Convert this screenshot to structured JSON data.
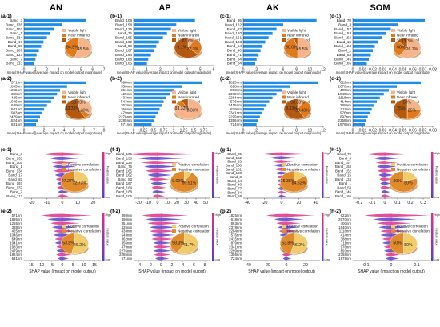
{
  "column_headers": [
    "AN",
    "AP",
    "AK",
    "SOM"
  ],
  "legend_labels": {
    "bands": [
      "Visible light",
      "Near infrared",
      "Short infrared"
    ],
    "correlation": [
      "Positive correlation",
      "Negative correlation"
    ]
  },
  "colorbar": {
    "high": "High",
    "low": "Low",
    "title": "Feature value"
  },
  "colors": {
    "bar": "#1f8ee8",
    "visible": "#f5b48a",
    "near_infrared": "#e07a1c",
    "short_infrared": "#b35a10",
    "positive": "#f2cc6b",
    "negative": "#e08a2a",
    "violin_hi": "#e0308a",
    "violin_lo": "#5a3ec8"
  },
  "chart_data": [
    {
      "id": "a-1",
      "type": "bar",
      "panel": "(a-1)",
      "categories": [
        "Band_3",
        "Band_135",
        "Band_103",
        "Band_1",
        "Band_134",
        "Band_17",
        "Band_83",
        "Band_167",
        "Band_137",
        "Band_7",
        "Band_113"
      ],
      "values": [
        5.4,
        3.3,
        2.6,
        2.3,
        2.0,
        1.7,
        1.5,
        1.3,
        1.1,
        1.0,
        0.9
      ],
      "xlim": [
        0,
        7
      ],
      "ticks": [
        0,
        1,
        2,
        3,
        4,
        5,
        6,
        7
      ],
      "pie": [
        {
          "label": "Visible light",
          "value": 54.5
        },
        {
          "label": "Near infrared",
          "value": 45.5
        }
      ],
      "pie_text": [
        "54.5%",
        "45.5%"
      ],
      "xlabel": "mean|SHAP value|(average impact on model output magnitude)"
    },
    {
      "id": "a-2",
      "type": "bar",
      "panel": "(a-2)",
      "categories": [
        "571nm",
        "1895nm",
        "1255nm",
        "388nm",
        "425nm",
        "1046nm",
        "649nm",
        "1941nm",
        "1983nm",
        "2479nm",
        "1824nm",
        "631nm"
      ],
      "values": [
        6.2,
        4.3,
        3.6,
        3.3,
        3.0,
        2.7,
        2.3,
        2.0,
        1.8,
        1.6,
        1.4,
        1.2
      ],
      "xlim": [
        0,
        8
      ],
      "ticks": [
        0,
        1,
        2,
        3,
        4,
        5,
        6,
        7,
        8
      ],
      "pie": [
        {
          "label": "Visible light",
          "value": 33.33
        },
        {
          "label": "Near infrared",
          "value": 8.33
        },
        {
          "label": "Short infrared",
          "value": 58.33
        }
      ],
      "pie_text": [
        "33.33%",
        "8.33%",
        "58.33%"
      ],
      "xlabel": "mean|SHAP value|(average impact on model output magnitude)"
    },
    {
      "id": "b-1",
      "type": "bar",
      "panel": "(b-1)",
      "categories": [
        "Band_106",
        "Band_158",
        "Band_125",
        "Band_76",
        "Band_165",
        "Band_162",
        "Band_83",
        "Band_167",
        "Band_164",
        "Band_168",
        "Band_105"
      ],
      "values": [
        4.6,
        3.2,
        2.8,
        2.5,
        2.2,
        1.9,
        1.7,
        1.5,
        1.3,
        1.1,
        1.0
      ],
      "xlim": [
        0,
        6
      ],
      "ticks": [
        0,
        1,
        2,
        3,
        4,
        5,
        6
      ],
      "pie": [
        {
          "label": "Visible light",
          "value": 9.1
        },
        {
          "label": "Near infrared",
          "value": 27.3
        },
        {
          "label": "Short infrared",
          "value": 63.6
        }
      ],
      "pie_text": [
        "9.1%",
        "27.3%",
        "63.6%"
      ],
      "xlabel": "mean|SHAP value|(average impact on model output magnitude)"
    },
    {
      "id": "b-2",
      "type": "bar",
      "panel": "(b-2)",
      "categories": [
        "398nm",
        "350nm",
        "351nm",
        "425nm",
        "433nm",
        "543nm",
        "362nm",
        "356nm",
        "479nm",
        "2276nm",
        "2285nm",
        "571nm"
      ],
      "values": [
        1.7,
        1.2,
        1.0,
        0.9,
        0.8,
        0.75,
        0.7,
        0.65,
        0.6,
        0.55,
        0.5,
        0.45
      ],
      "xlim": [
        0,
        2
      ],
      "ticks": [
        0,
        0.25,
        0.5,
        0.75,
        1,
        1.25,
        1.5,
        1.75
      ],
      "pie": [
        {
          "label": "Visible light",
          "value": 83.33
        },
        {
          "label": "Near infrared",
          "value": 8.33
        },
        {
          "label": "Short infrared",
          "value": 8.33
        }
      ],
      "pie_text": [
        "83.33%",
        "8.33%"
      ],
      "xlabel": "mean|SHAP value|(average impact on model output magnitude)"
    },
    {
      "id": "c-1",
      "type": "bar",
      "panel": "(c-1)",
      "categories": [
        "Band_95",
        "Band_162",
        "Band_82",
        "Band_160",
        "Band_161",
        "Band_103",
        "Band_54",
        "Band_40",
        "Band_71",
        "Band_64",
        "Band_84"
      ],
      "values": [
        11.0,
        6.0,
        5.0,
        4.4,
        3.8,
        3.3,
        2.9,
        2.6,
        2.3,
        2.0,
        1.8
      ],
      "xlim": [
        0,
        12
      ],
      "ticks": [
        0,
        2,
        4,
        6,
        8,
        10,
        12
      ],
      "pie": [
        {
          "label": "Visible light",
          "value": 50.0
        },
        {
          "label": "Near infrared",
          "value": 45.5
        },
        {
          "label": "Short infrared",
          "value": 4.5
        }
      ],
      "pie_text": [
        "50.0%",
        "45.5%"
      ],
      "xlabel": "mean|SHAP value|(average impact on model output magnitude)"
    },
    {
      "id": "c-2",
      "type": "bar",
      "panel": "(c-2)",
      "categories": [
        "1825nm",
        "618nm",
        "863nm",
        "2378nm",
        "2284nm",
        "576nm",
        "2415nm",
        "879nm",
        "2341nm",
        "2299nm",
        "1356nm",
        "724nm"
      ],
      "values": [
        11.2,
        7.0,
        5.8,
        5.0,
        4.4,
        3.9,
        3.5,
        3.1,
        2.8,
        2.5,
        2.2,
        2.0
      ],
      "xlim": [
        0,
        12
      ],
      "ticks": [
        0,
        2,
        4,
        6,
        8,
        10,
        12
      ],
      "pie": [
        {
          "label": "Visible light",
          "value": 8.33
        },
        {
          "label": "Near infrared",
          "value": 33.33
        },
        {
          "label": "Short infrared",
          "value": 58.33
        }
      ],
      "pie_text": [
        "8.33%",
        "33.33%",
        "58.33%"
      ],
      "xlabel": "mean|SHAP value|(average impact on model output magnitude)"
    },
    {
      "id": "d-1",
      "type": "bar",
      "panel": "(d-1)",
      "categories": [
        "Band_70",
        "Band_3",
        "Band_157",
        "Band_153",
        "Band_152",
        "Band_15",
        "Band_124",
        "Band_1",
        "Band_53",
        "Band_145",
        "Band_165"
      ],
      "values": [
        0.072,
        0.045,
        0.038,
        0.033,
        0.029,
        0.025,
        0.022,
        0.02,
        0.018,
        0.016,
        0.014
      ],
      "xlim": [
        0,
        0.08
      ],
      "ticks": [
        0,
        0.01,
        0.02,
        0.03,
        0.04,
        0.05,
        0.06,
        0.07,
        0.08
      ],
      "pie": [
        {
          "label": "Visible light",
          "value": 60.0
        },
        {
          "label": "Near infrared",
          "value": 26.7
        },
        {
          "label": "Short infrared",
          "value": 13.3
        }
      ],
      "pie_text": [
        "60%",
        "26.7%",
        "13.3%"
      ],
      "xlabel": "mean|SHAP value|(average impact on model output magnitude)"
    },
    {
      "id": "d-2",
      "type": "bar",
      "panel": "(d-2)",
      "categories": [
        "622nm",
        "2070nm",
        "400nm",
        "1940nm",
        "1118nm",
        "414nm",
        "388nm",
        "711nm",
        "976nm",
        "893nm",
        "2358nm",
        "1979nm"
      ],
      "values": [
        0.068,
        0.044,
        0.036,
        0.031,
        0.027,
        0.024,
        0.021,
        0.019,
        0.017,
        0.015,
        0.013,
        0.012
      ],
      "xlim": [
        0,
        0.08
      ],
      "ticks": [
        0,
        0.01,
        0.02,
        0.03,
        0.04,
        0.05,
        0.06,
        0.07,
        0.08
      ],
      "pie": [
        {
          "label": "Visible light",
          "value": 25.0
        },
        {
          "label": "Near infrared",
          "value": 25.0
        },
        {
          "label": "Short infrared",
          "value": 50.0
        }
      ],
      "pie_text": [
        "25%",
        "25%",
        "50%"
      ],
      "xlabel": "mean|SHAP value|(average impact on model output magnitude)"
    },
    {
      "id": "e-1",
      "type": "scatter",
      "panel": "(e-1)",
      "categories": [
        "Band_3",
        "Band_135",
        "Band_103",
        "Band_1",
        "Band_134",
        "Band_17",
        "Band_83",
        "Band_167",
        "Band_137",
        "Band_7",
        "Band_113"
      ],
      "spread": [
        18,
        12,
        10,
        9,
        8,
        7,
        6,
        5,
        5,
        4,
        4
      ],
      "xlim": [
        -25,
        25
      ],
      "ticks": [
        -20,
        -10,
        0,
        10,
        20
      ],
      "pie": [
        {
          "label": "Positive correlation",
          "value": 27.27
        },
        {
          "label": "Negative correlation",
          "value": 72.73
        }
      ],
      "pie_text": [
        "27.27%",
        "72.73%"
      ],
      "xlabel": ""
    },
    {
      "id": "e-2",
      "type": "scatter",
      "panel": "(e-2)",
      "categories": [
        "571nm",
        "1895nm",
        "1255nm",
        "388nm",
        "425nm",
        "1046nm",
        "649nm",
        "1941nm",
        "1983nm",
        "2479nm",
        "1824nm",
        "631nm"
      ],
      "spread": [
        14,
        10,
        8,
        7,
        6,
        6,
        5,
        5,
        4,
        4,
        4,
        3
      ],
      "xlim": [
        -18,
        18
      ],
      "ticks": [
        -15,
        -10,
        -5,
        0,
        5,
        10,
        15
      ],
      "pie": [
        {
          "label": "Positive correlation",
          "value": 53.8
        },
        {
          "label": "Negative correlation",
          "value": 46.2
        }
      ],
      "pie_text": [
        "53.8%",
        "46.2%"
      ],
      "xlabel": "SHAP value (impact on model output)"
    },
    {
      "id": "f-1",
      "type": "scatter",
      "panel": "(f-1)",
      "categories": [
        "Band_106",
        "Band_158",
        "Band_125",
        "Band_76",
        "Band_165",
        "Band_162",
        "Band_83",
        "Band_167",
        "Band_164",
        "Band_168",
        "Band_105"
      ],
      "spread": [
        45,
        30,
        25,
        20,
        18,
        15,
        12,
        10,
        9,
        8,
        7
      ],
      "xlim": [
        -25,
        55
      ],
      "ticks": [
        -20,
        -10,
        0,
        10,
        20,
        30,
        40,
        50
      ],
      "pie": [
        {
          "label": "Positive correlation",
          "value": 9.09
        },
        {
          "label": "Negative correlation",
          "value": 90.91
        }
      ],
      "pie_text": [
        "9.09%",
        "90.91%"
      ],
      "xlabel": ""
    },
    {
      "id": "f-2",
      "type": "scatter",
      "panel": "(f-2)",
      "categories": [
        "398nm",
        "350nm",
        "351nm",
        "425nm",
        "433nm",
        "543nm",
        "362nm",
        "356nm",
        "479nm",
        "2276nm",
        "2285nm",
        "571nm"
      ],
      "spread": [
        5,
        4,
        3.5,
        3,
        3,
        2.5,
        2.5,
        2,
        2,
        2,
        1.8,
        1.5
      ],
      "xlim": [
        -5,
        9
      ],
      "ticks": [
        -4,
        -2,
        0,
        2,
        4,
        6,
        8
      ],
      "pie": [
        {
          "label": "Positive correlation",
          "value": 58.3
        },
        {
          "label": "Negative correlation",
          "value": 41.7
        }
      ],
      "pie_text": [
        "58.3%",
        "41.7%"
      ],
      "xlabel": "SHAP value (impact on model output)"
    },
    {
      "id": "g-1",
      "type": "scatter",
      "panel": "(g-1)",
      "categories": [
        "Band_95",
        "Band_162",
        "Band_82",
        "Band_160",
        "Band_161",
        "Band_103",
        "Band_8",
        "Band_54",
        "Band_40",
        "Band_77",
        "Band_84",
        "Band_58"
      ],
      "spread": [
        35,
        20,
        15,
        13,
        11,
        10,
        9,
        8,
        7,
        6,
        6,
        5
      ],
      "xlim": [
        -45,
        45
      ],
      "ticks": [
        -40,
        -20,
        0,
        20,
        40
      ],
      "pie": [
        {
          "label": "Positive correlation",
          "value": 15.38
        },
        {
          "label": "Negative correlation",
          "value": 84.62
        }
      ],
      "pie_text": [
        "15.38%",
        "84.62%"
      ],
      "xlabel": ""
    },
    {
      "id": "g-2",
      "type": "scatter",
      "panel": "(g-2)",
      "categories": [
        "1825nm",
        "618nm",
        "863nm",
        "2378nm",
        "2284nm",
        "576nm",
        "2415nm",
        "879nm",
        "2341nm",
        "2299nm",
        "1356nm",
        "724nm"
      ],
      "spread": [
        30,
        18,
        15,
        13,
        11,
        10,
        9,
        8,
        7,
        6,
        6,
        5
      ],
      "xlim": [
        -45,
        35
      ],
      "ticks": [
        -40,
        -20,
        0,
        20
      ],
      "pie": [
        {
          "label": "Positive correlation",
          "value": 53.8
        },
        {
          "label": "Negative correlation",
          "value": 46.2
        }
      ],
      "pie_text": [
        "53.8%",
        "46.2%"
      ],
      "xlabel": "SHAP value (impact on model output)"
    },
    {
      "id": "h-1",
      "type": "scatter",
      "panel": "(h-1)",
      "categories": [
        "Band_70",
        "Band_3",
        "Band_157",
        "Band_153",
        "Band_152",
        "Band_15",
        "Band_124",
        "Band_1",
        "Band_53",
        "Band_145",
        "Band_165"
      ],
      "spread": [
        0.2,
        0.12,
        0.1,
        0.09,
        0.08,
        0.07,
        0.06,
        0.05,
        0.05,
        0.04,
        0.04
      ],
      "xlim": [
        -0.25,
        0.35
      ],
      "ticks": [
        -0.2,
        -0.1,
        0,
        0.1,
        0.2,
        0.3
      ],
      "pie": [
        {
          "label": "Positive correlation",
          "value": 20.0
        },
        {
          "label": "Negative correlation",
          "value": 80.0
        }
      ],
      "pie_text": [
        "20%",
        "80%"
      ],
      "xlabel": ""
    },
    {
      "id": "h-2",
      "type": "scatter",
      "panel": "(h-2)",
      "categories": [
        "622nm",
        "2070nm",
        "400nm",
        "1940nm",
        "1118nm",
        "414nm",
        "388nm",
        "711nm",
        "976nm",
        "893nm",
        "2358nm",
        "1979nm"
      ],
      "spread": [
        0.15,
        0.1,
        0.08,
        0.07,
        0.06,
        0.06,
        0.05,
        0.05,
        0.04,
        0.04,
        0.035,
        0.03
      ],
      "xlim": [
        -0.15,
        0.15
      ],
      "ticks": [
        -0.1,
        0,
        0.1
      ],
      "pie": [
        {
          "label": "Positive correlation",
          "value": 50.0
        },
        {
          "label": "Negative correlation",
          "value": 50.0
        }
      ],
      "pie_text": [
        "50%",
        "50%"
      ],
      "xlabel": "SHAP value (impact on model output)"
    }
  ]
}
